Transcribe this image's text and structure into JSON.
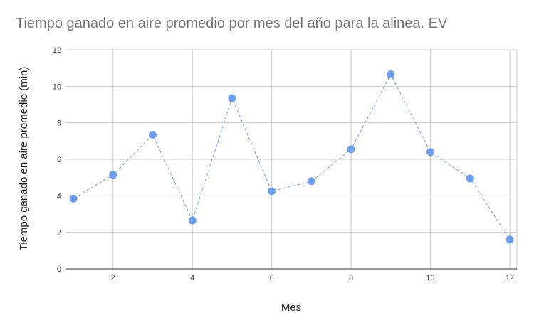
{
  "chart_data": {
    "type": "line",
    "title": "Tiempo ganado en aire promedio por mes del año para la alinea. EV",
    "xlabel": "Mes",
    "ylabel": "Tiempo ganado en aire promedio (min)",
    "xlim": [
      1,
      12
    ],
    "ylim": [
      0,
      12
    ],
    "x_ticks": [
      2,
      4,
      6,
      8,
      10,
      12
    ],
    "y_ticks": [
      0,
      2,
      4,
      6,
      8,
      10,
      12
    ],
    "grid": true,
    "series": [
      {
        "x": [
          1,
          2,
          3,
          4,
          5,
          6,
          7,
          8,
          9,
          10,
          11,
          12
        ],
        "values": [
          3.85,
          5.15,
          7.35,
          2.65,
          9.35,
          4.25,
          4.8,
          6.55,
          10.65,
          6.4,
          4.95,
          1.6
        ],
        "color": "#6d9eeb",
        "line_style": "dashed",
        "markers": true
      }
    ]
  }
}
